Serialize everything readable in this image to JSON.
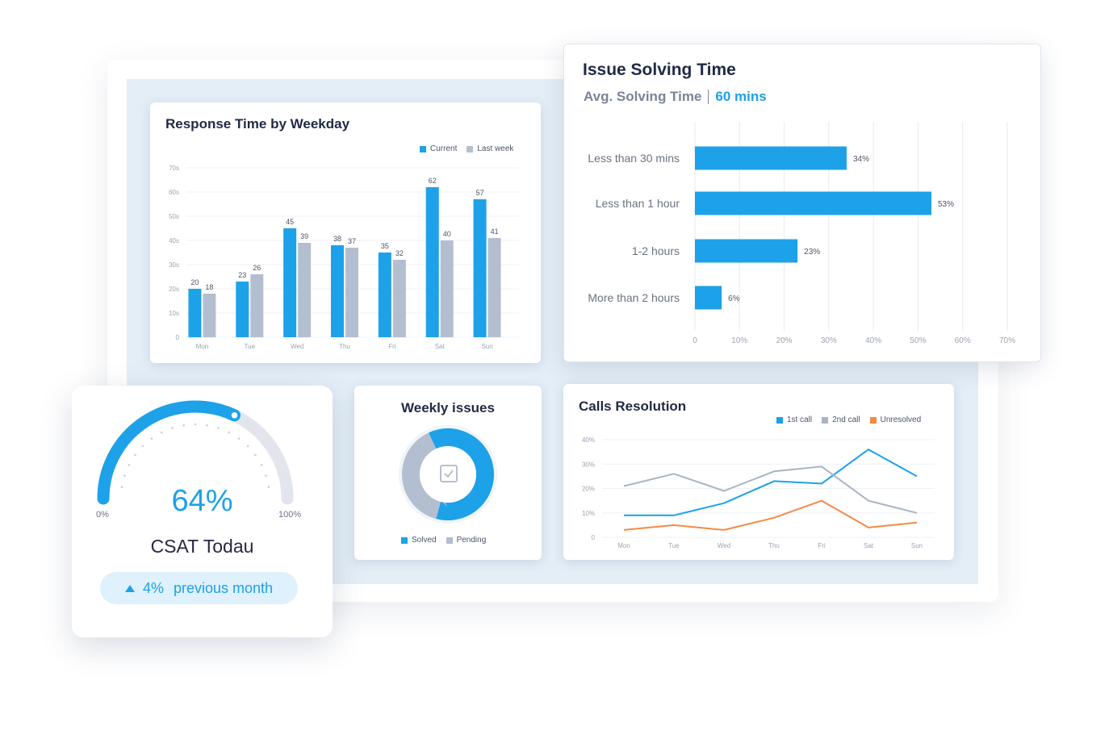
{
  "colors": {
    "current": "#1da1e8",
    "last_week": "#b3bfd0",
    "first_call": "#1da1e8",
    "second_call": "#a9b4c4",
    "unresolved": "#f48a46",
    "solved": "#1da1e8",
    "pending": "#b3bfd0"
  },
  "response_card": {
    "title": "Response Time by Weekday",
    "legend": [
      "Current",
      "Last week"
    ]
  },
  "issue_card": {
    "title": "Issue Solving Time",
    "avg_label": "Avg. Solving Time",
    "avg_value": "60 mins"
  },
  "csat_card": {
    "percent": "64%",
    "label": "CSAT Todau",
    "gauge_min": "0%",
    "gauge_max": "100%",
    "change": "4%",
    "change_label": "previous month",
    "icon": "triangle-up-icon"
  },
  "weekly_card": {
    "title": "Weekly issues",
    "legend": [
      "Solved",
      "Pending"
    ],
    "icon": "checkbox-icon"
  },
  "calls_card": {
    "title": "Calls Resolution",
    "legend": [
      "1st call",
      "2nd call",
      "Unresolved"
    ]
  },
  "chart_data": [
    {
      "id": "response",
      "type": "bar",
      "title": "Response Time by Weekday",
      "categories": [
        "Mon",
        "Tue",
        "Wed",
        "Thu",
        "Fri",
        "Sat",
        "Sun"
      ],
      "series": [
        {
          "name": "Current",
          "values": [
            20,
            23,
            45,
            38,
            35,
            62,
            57
          ]
        },
        {
          "name": "Last week",
          "values": [
            18,
            26,
            39,
            37,
            32,
            40,
            41
          ]
        }
      ],
      "yticks": [
        "0",
        "10s",
        "20s",
        "30s",
        "40s",
        "50s",
        "60s",
        "70s"
      ],
      "ylim": [
        0,
        70
      ],
      "grid": true,
      "legend_position": "top-right"
    },
    {
      "id": "issue",
      "type": "bar",
      "orientation": "horizontal",
      "title": "Issue Solving Time",
      "categories": [
        "Less than 30 mins",
        "Less than 1 hour",
        "1-2 hours",
        "More than 2 hours"
      ],
      "values": [
        34,
        53,
        23,
        6
      ],
      "value_labels": [
        "34%",
        "53%",
        "23%",
        "6%"
      ],
      "xticks": [
        "0",
        "10%",
        "20%",
        "30%",
        "40%",
        "50%",
        "60%",
        "70%"
      ],
      "xlim": [
        0,
        70
      ],
      "grid": true
    },
    {
      "id": "weekly",
      "type": "pie",
      "title": "Weekly issues",
      "labels": [
        "Solved",
        "Pending"
      ],
      "values": [
        61,
        39
      ],
      "legend_position": "bottom"
    },
    {
      "id": "calls",
      "type": "line",
      "title": "Calls Resolution",
      "x": [
        "Mon",
        "Tue",
        "Wed",
        "Thu",
        "Fri",
        "Sat",
        "Sun"
      ],
      "series": [
        {
          "name": "1st call",
          "values": [
            9,
            9,
            14,
            23,
            22,
            36,
            25
          ]
        },
        {
          "name": "2nd call",
          "values": [
            21,
            26,
            19,
            27,
            29,
            15,
            10
          ]
        },
        {
          "name": "Unresolved",
          "values": [
            3,
            5,
            3,
            8,
            15,
            4,
            6
          ]
        }
      ],
      "yticks": [
        "0",
        "10%",
        "20%",
        "30%",
        "40%"
      ],
      "ylim": [
        0,
        40
      ],
      "grid": true,
      "legend_position": "top-right"
    },
    {
      "id": "csat",
      "type": "gauge",
      "value": 64,
      "min_label": "0%",
      "max_label": "100%"
    }
  ]
}
